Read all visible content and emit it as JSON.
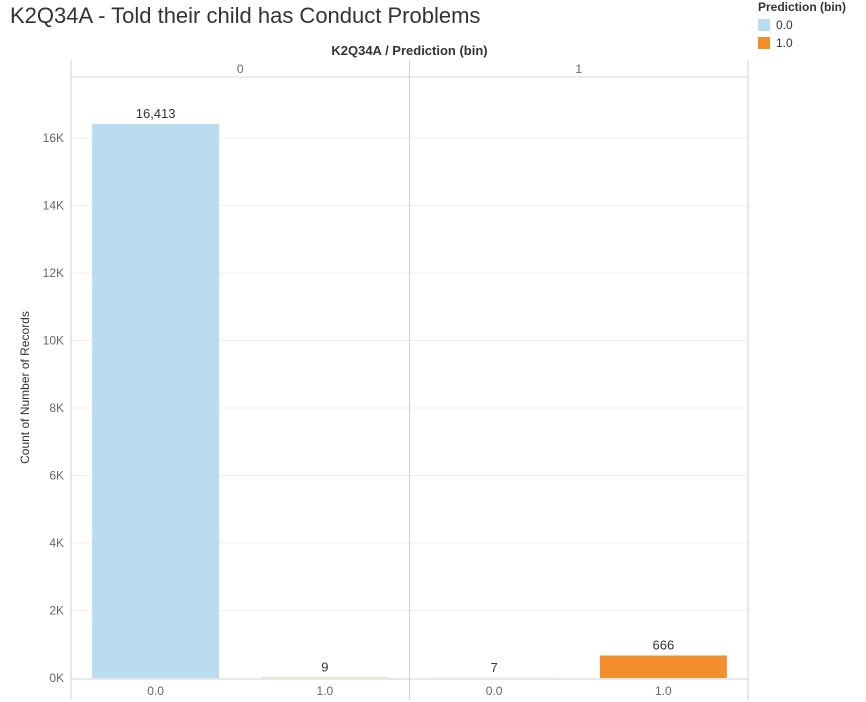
{
  "chart_data": {
    "type": "bar",
    "title": "K2Q34A - Told their child has Conduct Problems",
    "header": "K2Q34A / Prediction (bin)",
    "ylabel": "Count of Number of Records",
    "ylim": [
      0,
      17500
    ],
    "y_ticks": [
      0,
      2000,
      4000,
      6000,
      8000,
      10000,
      12000,
      14000,
      16000
    ],
    "y_tick_labels": [
      "0K",
      "2K",
      "4K",
      "6K",
      "8K",
      "10K",
      "12K",
      "14K",
      "16K"
    ],
    "grid": true,
    "legend_placement": "top-right",
    "legend": {
      "title": "Prediction (bin)",
      "items": [
        {
          "label": "0.0",
          "color": "#b9dcef"
        },
        {
          "label": "1.0",
          "color": "#f28e2b"
        }
      ]
    },
    "panels": [
      {
        "label": "0",
        "bars": [
          {
            "category": "0.0",
            "value": 16413,
            "data_label": "16,413",
            "color": "#b9dcef"
          },
          {
            "category": "1.0",
            "value": 9,
            "data_label": "9",
            "color": "#f28e2b"
          }
        ]
      },
      {
        "label": "1",
        "bars": [
          {
            "category": "0.0",
            "value": 7,
            "data_label": "7",
            "color": "#b9dcef"
          },
          {
            "category": "1.0",
            "value": 666,
            "data_label": "666",
            "color": "#f28e2b"
          }
        ]
      }
    ]
  }
}
